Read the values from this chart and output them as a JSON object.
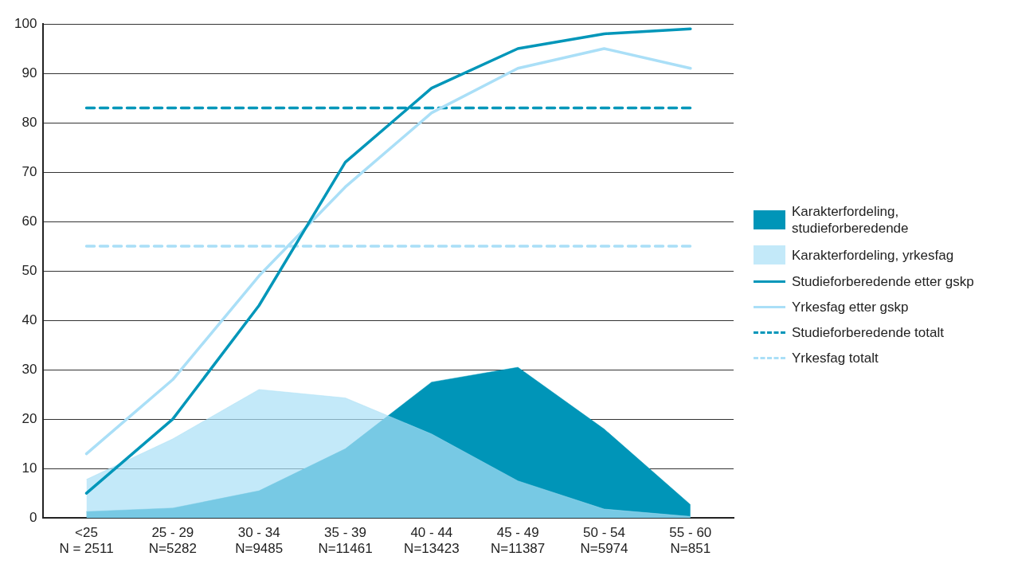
{
  "chart_data": {
    "type": "line",
    "categories": [
      "<25\nN = 2511",
      "25 - 29\nN=5282",
      "30 - 34\nN=9485",
      "35 - 39\nN=11461",
      "40 - 44\nN=13423",
      "45 - 49\nN=11387",
      "50 - 54\nN=5974",
      "55 - 60\nN=851"
    ],
    "series": [
      {
        "name": "Karakterfordeling, studieforberedende",
        "type": "area",
        "color": "#0095b8",
        "values": [
          1.3,
          2,
          5.5,
          14,
          27.5,
          30.5,
          18,
          2.7
        ]
      },
      {
        "name": "Karakterfordeling, yrkesfag",
        "type": "area",
        "color": "#a9e0f6",
        "values": [
          7.8,
          16,
          26,
          24.3,
          17,
          7.5,
          1.8,
          0.3
        ]
      },
      {
        "name": "Studieforberedende etter gskp",
        "color": "#0096b9",
        "line_style": "solid",
        "values": [
          5,
          20,
          43,
          72,
          87,
          95,
          98,
          99
        ]
      },
      {
        "name": "Yrkesfag etter gskp",
        "color": "#aadff7",
        "line_style": "solid",
        "values": [
          13,
          28,
          49,
          67,
          82,
          91,
          95,
          91
        ]
      },
      {
        "name": "Studieforberedende totalt",
        "color": "#0096b9",
        "line_style": "dashed",
        "values": [
          83,
          83,
          83,
          83,
          83,
          83,
          83,
          83
        ]
      },
      {
        "name": "Yrkesfag totalt",
        "color": "#aadff7",
        "line_style": "dashed",
        "values": [
          55,
          55,
          55,
          55,
          55,
          55,
          55,
          55
        ]
      }
    ],
    "ylim": [
      0,
      100
    ],
    "yticks": [
      0,
      10,
      20,
      30,
      40,
      50,
      60,
      70,
      80,
      90,
      100
    ],
    "grid": "y",
    "legend": "right",
    "marker": "none"
  }
}
